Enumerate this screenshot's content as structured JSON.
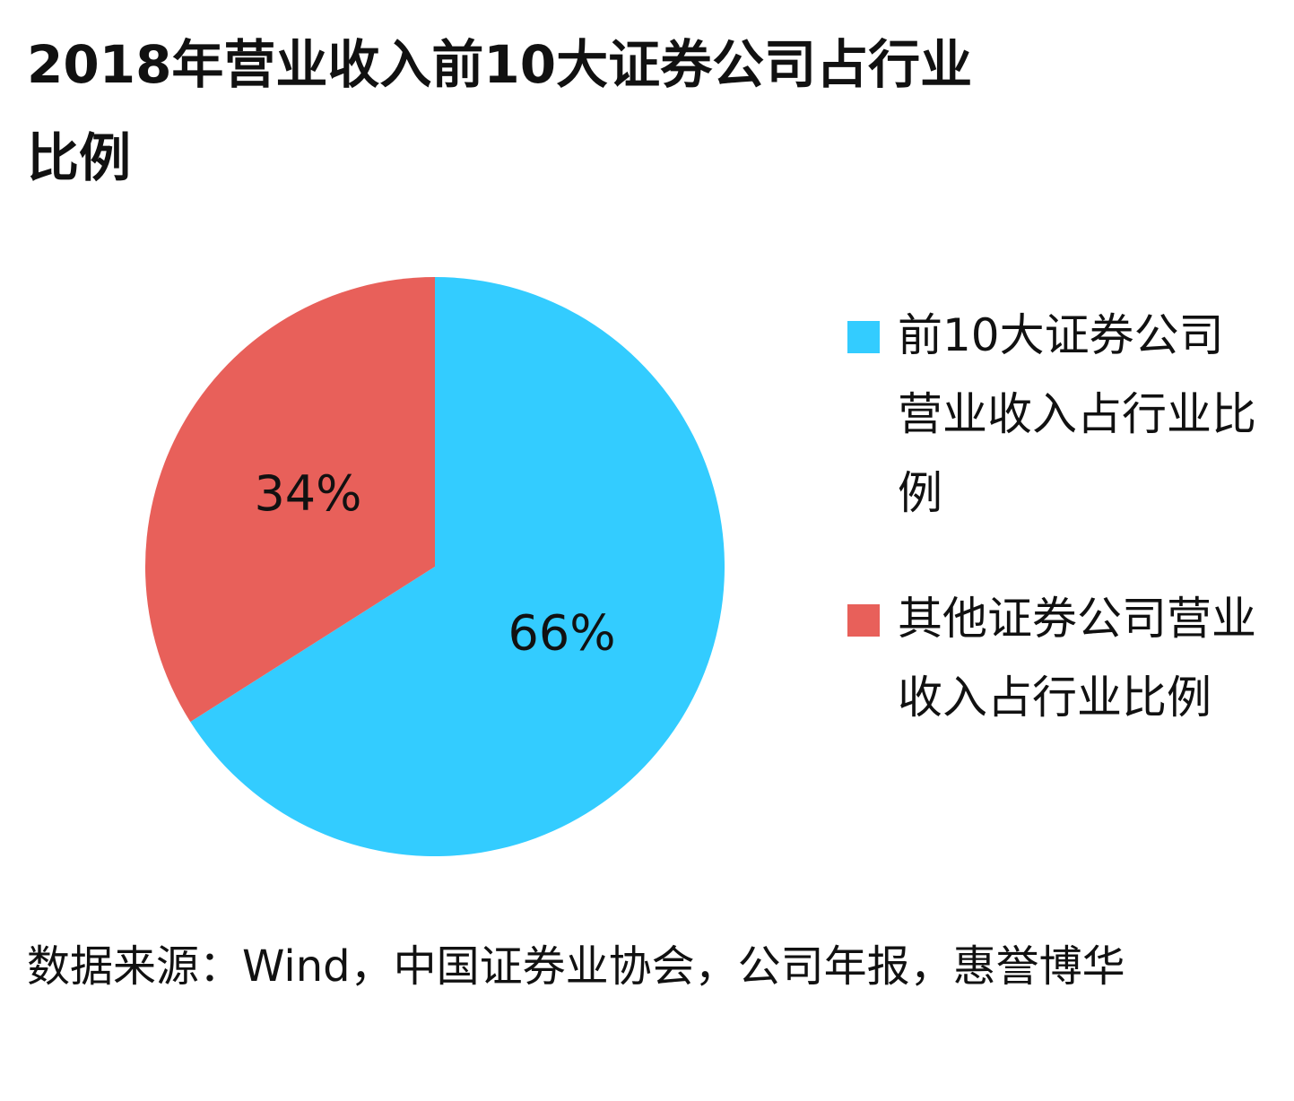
{
  "chart_data": {
    "type": "pie",
    "title": "2018年营业收入前10大证券公司占行业比例",
    "categories": [
      "前10大证券公司营业收入占行业比例",
      "其他证券公司营业收入占行业比例"
    ],
    "values": [
      66,
      34
    ],
    "value_labels": [
      "66%",
      "34%"
    ],
    "colors": [
      "#33ccff",
      "#e8605a"
    ],
    "source": "数据来源：Wind，中国证券业协会，公司年报，惠誉博华"
  }
}
